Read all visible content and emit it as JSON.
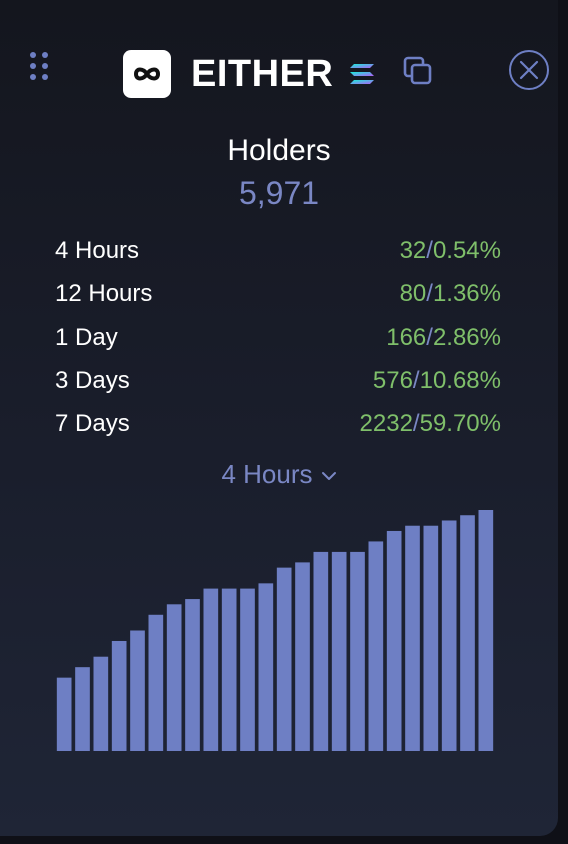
{
  "header": {
    "token_name": "EITHER",
    "icons": [
      "drag-handle-icon",
      "infinity-logo-icon",
      "solana-chain-icon",
      "copy-icon",
      "close-icon"
    ]
  },
  "summary": {
    "title": "Holders",
    "total": "5,971"
  },
  "periods": [
    {
      "label": "4 Hours",
      "count": "32",
      "percent": "0.54%"
    },
    {
      "label": "12 Hours",
      "count": "80",
      "percent": "1.36%"
    },
    {
      "label": "1 Day",
      "count": "166",
      "percent": "2.86%"
    },
    {
      "label": "3 Days",
      "count": "576",
      "percent": "10.68%"
    },
    {
      "label": "7 Days",
      "count": "2232",
      "percent": "59.70%"
    }
  ],
  "separator": "/",
  "dropdown": {
    "selected": "4 Hours"
  },
  "colors": {
    "bar": "#6e7fc4",
    "accent": "#7a87c4",
    "positive": "#7fbf6a",
    "text": "#ffffff"
  },
  "chart_data": {
    "type": "bar",
    "values": [
      5939,
      5941,
      5943,
      5946,
      5948,
      5951,
      5953,
      5954,
      5956,
      5956,
      5956,
      5957,
      5960,
      5961,
      5963,
      5963,
      5963,
      5965,
      5967,
      5968,
      5968,
      5969,
      5970,
      5971
    ],
    "ylim": [
      5925,
      5971
    ]
  }
}
